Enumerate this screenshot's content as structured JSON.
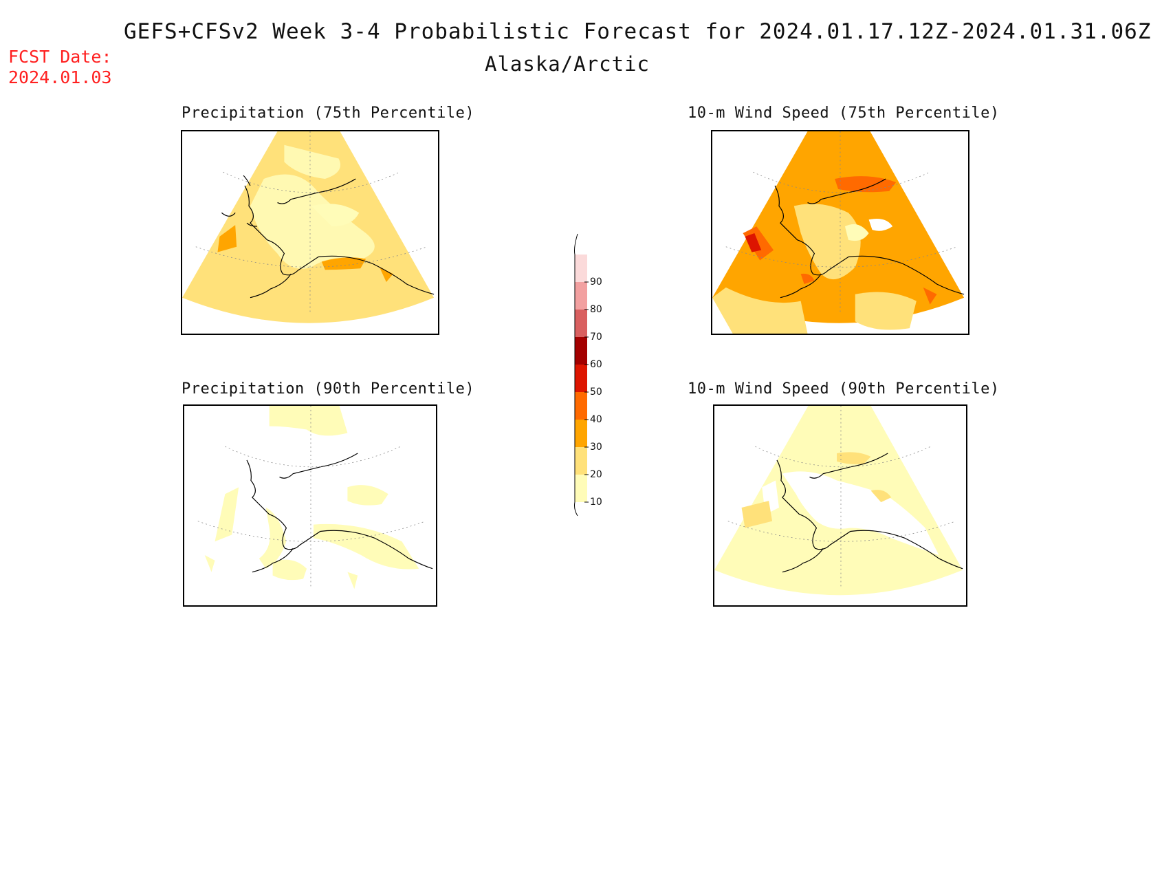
{
  "header": {
    "title": "GEFS+CFSv2 Week 3-4 Probabilistic Forecast for 2024.01.17.12Z-2024.01.31.06Z",
    "subtitle": "Alaska/Arctic",
    "fcst_date": "FCST Date:\n2024.01.03"
  },
  "panels": [
    {
      "id": "precip-75",
      "title": "Precipitation (75th Percentile)"
    },
    {
      "id": "wind-75",
      "title": "10-m Wind Speed (75th Percentile)"
    },
    {
      "id": "precip-90",
      "title": "Precipitation (90th Percentile)"
    },
    {
      "id": "wind-90",
      "title": "10-m Wind Speed (90th Percentile)"
    }
  ],
  "colorbar": {
    "levels": [
      "10",
      "20",
      "30",
      "40",
      "50",
      "60",
      "70",
      "80",
      "90"
    ],
    "colors": [
      "#fffcb8",
      "#ffe17a",
      "#ffa500",
      "#ff6a00",
      "#dd1500",
      "#a30000",
      "#d96060",
      "#f2a0a0",
      "#fbdada"
    ]
  }
}
